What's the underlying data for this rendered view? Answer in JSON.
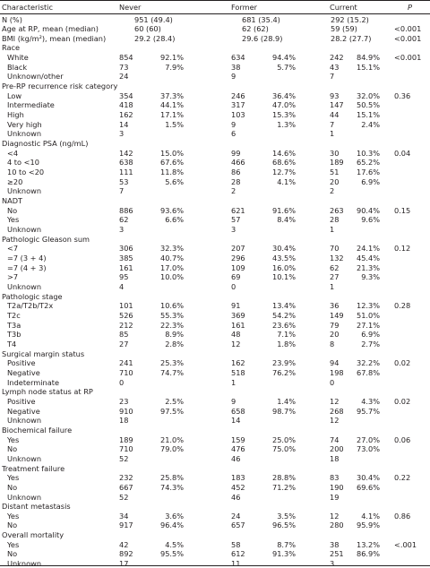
{
  "table": {
    "header": [
      "Characteristic",
      "Never",
      "Former",
      "Current",
      "P"
    ],
    "rows": [
      [
        "N (%)",
        "951 (49.4)",
        null,
        "681 (35.4)",
        null,
        "292 (15.2)",
        null,
        null
      ],
      [
        "Age at RP, mean (median)",
        "60 (60)",
        null,
        "62 (62)",
        null,
        "59 (59)",
        null,
        "<0.001"
      ],
      [
        "BMI (kg/m²), mean (median)",
        "29.2 (28.4)",
        null,
        "29.6 (28.9)",
        null,
        "28.2 (27.7)",
        null,
        "<0.001"
      ],
      [
        "Race"
      ],
      [
        "White",
        "854",
        "92.1%",
        "634",
        "94.4%",
        "242",
        "84.9%",
        "<0.001"
      ],
      [
        "Black",
        "73",
        "7.9%",
        "38",
        "5.7%",
        "43",
        "15.1%",
        null
      ],
      [
        "Unknown/other",
        "24",
        null,
        "9",
        null,
        "7",
        null,
        null
      ],
      [
        "Pre-RP recurrence risk category"
      ],
      [
        "Low",
        "354",
        "37.3%",
        "246",
        "36.4%",
        "93",
        "32.0%",
        "0.36"
      ],
      [
        "Intermediate",
        "418",
        "44.1%",
        "317",
        "47.0%",
        "147",
        "50.5%",
        null
      ],
      [
        "High",
        "162",
        "17.1%",
        "103",
        "15.3%",
        "44",
        "15.1%",
        null
      ],
      [
        "Very high",
        "14",
        "1.5%",
        "9",
        "1.3%",
        "7",
        "2.4%",
        null
      ],
      [
        "Unknown",
        "3",
        null,
        "6",
        null,
        "1",
        null,
        null
      ],
      [
        "Diagnostic PSA (ng/mL)"
      ],
      [
        "<4",
        "142",
        "15.0%",
        "99",
        "14.6%",
        "30",
        "10.3%",
        "0.04"
      ],
      [
        "4 to <10",
        "638",
        "67.6%",
        "466",
        "68.6%",
        "189",
        "65.2%",
        null
      ],
      [
        "10 to <20",
        "111",
        "11.8%",
        "86",
        "12.7%",
        "51",
        "17.6%",
        null
      ],
      [
        "≥20",
        "53",
        "5.6%",
        "28",
        "4.1%",
        "20",
        "6.9%",
        null
      ],
      [
        "Unknown",
        "7",
        null,
        "2",
        null,
        "2",
        null,
        null
      ],
      [
        "NADT"
      ],
      [
        "No",
        "886",
        "93.6%",
        "621",
        "91.6%",
        "263",
        "90.4%",
        "0.15"
      ],
      [
        "Yes",
        "62",
        "6.6%",
        "57",
        "8.4%",
        "28",
        "9.6%",
        null
      ],
      [
        "Unknown",
        "3",
        null,
        "3",
        null,
        "1",
        null,
        null
      ],
      [
        "Pathologic Gleason sum"
      ],
      [
        "<7",
        "306",
        "32.3%",
        "207",
        "30.4%",
        "70",
        "24.1%",
        "0.12"
      ],
      [
        "=7 (3 + 4)",
        "385",
        "40.7%",
        "296",
        "43.5%",
        "132",
        "45.4%",
        null
      ],
      [
        "=7 (4 + 3)",
        "161",
        "17.0%",
        "109",
        "16.0%",
        "62",
        "21.3%",
        null
      ],
      [
        ">7",
        "95",
        "10.0%",
        "69",
        "10.1%",
        "27",
        "9.3%",
        null
      ],
      [
        "Unknown",
        "4",
        null,
        "0",
        null,
        "1",
        null,
        null
      ],
      [
        "Pathologic stage"
      ],
      [
        "T2a/T2b/T2x",
        "101",
        "10.6%",
        "91",
        "13.4%",
        "36",
        "12.3%",
        "0.28"
      ],
      [
        "T2c",
        "526",
        "55.3%",
        "369",
        "54.2%",
        "149",
        "51.0%",
        null
      ],
      [
        "T3a",
        "212",
        "22.3%",
        "161",
        "23.6%",
        "79",
        "27.1%",
        null
      ],
      [
        "T3b",
        "85",
        "8.9%",
        "48",
        "7.1%",
        "20",
        "6.9%",
        null
      ],
      [
        "T4",
        "27",
        "2.8%",
        "12",
        "1.8%",
        "8",
        "2.7%",
        null
      ],
      [
        "Surgical margin status"
      ],
      [
        "Positive",
        "241",
        "25.3%",
        "162",
        "23.9%",
        "94",
        "32.2%",
        "0.02"
      ],
      [
        "Negative",
        "710",
        "74.7%",
        "518",
        "76.2%",
        "198",
        "67.8%",
        null
      ],
      [
        "Indeterminate",
        "0",
        null,
        "1",
        null,
        "0",
        null,
        null
      ],
      [
        "Lymph node status at RP"
      ],
      [
        "Positive",
        "23",
        "2.5%",
        "9",
        "1.4%",
        "12",
        "4.3%",
        "0.02"
      ],
      [
        "Negative",
        "910",
        "97.5%",
        "658",
        "98.7%",
        "268",
        "95.7%",
        null
      ],
      [
        "Unknown",
        "18",
        null,
        "14",
        null,
        "12",
        null,
        null
      ],
      [
        "Biochemical failure"
      ],
      [
        "Yes",
        "189",
        "21.0%",
        "159",
        "25.0%",
        "74",
        "27.0%",
        "0.06"
      ],
      [
        "No",
        "710",
        "79.0%",
        "476",
        "75.0%",
        "200",
        "73.0%",
        null
      ],
      [
        "Unknown",
        "52",
        null,
        "46",
        null,
        "18",
        null,
        null
      ],
      [
        "Treatment failure"
      ],
      [
        "Yes",
        "232",
        "25.8%",
        "183",
        "28.8%",
        "83",
        "30.4%",
        "0.22"
      ],
      [
        "No",
        "667",
        "74.3%",
        "452",
        "71.2%",
        "190",
        "69.6%",
        null
      ],
      [
        "Unknown",
        "52",
        null,
        "46",
        null,
        "19",
        null,
        null
      ],
      [
        "Distant metastasis"
      ],
      [
        "Yes",
        "34",
        "3.6%",
        "24",
        "3.5%",
        "12",
        "4.1%",
        "0.86"
      ],
      [
        "No",
        "917",
        "96.4%",
        "657",
        "96.5%",
        "280",
        "95.9%",
        null
      ],
      [
        "Overall mortality"
      ],
      [
        "Yes",
        "42",
        "4.5%",
        "58",
        "8.7%",
        "38",
        "13.2%",
        "<.001"
      ],
      [
        "No",
        "892",
        "95.5%",
        "612",
        "91.3%",
        "251",
        "86.9%",
        null
      ],
      [
        "Unknown",
        "17",
        null,
        "11",
        null,
        "3",
        null,
        null
      ]
    ]
  }
}
